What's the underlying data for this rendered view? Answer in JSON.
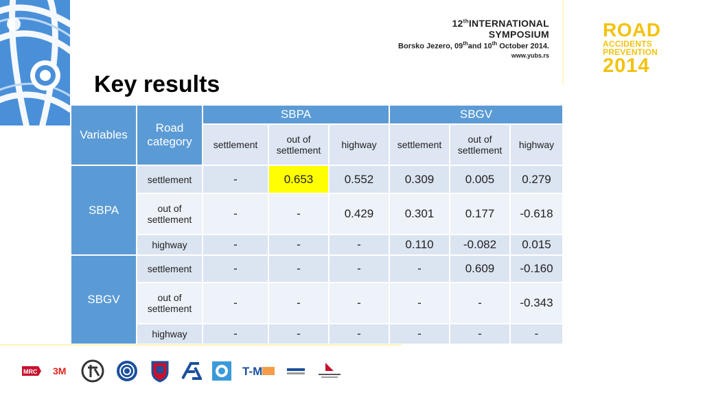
{
  "header": {
    "symposium_line1": "12",
    "symposium_line1_sup": "th",
    "symposium_line1_rest": "INTERNATIONAL",
    "symposium_line2": "SYMPOSIUM",
    "location_a": "Borsko Jezero, 09",
    "location_sup1": "th",
    "location_b": "and 10",
    "location_sup2": "th",
    "location_c": "October 2014.",
    "website": "www.yubs.rs",
    "brand": {
      "line1": "ROAD",
      "line2": "ACCIDENTS",
      "line3": "PREVENTION",
      "line4": "2014"
    }
  },
  "title": "Key results",
  "table": {
    "col_variables": "Variables",
    "col_road_category": "Road category",
    "group1": "SBPA",
    "group2": "SBGV",
    "sub_columns": [
      "settlement",
      "out of settlement",
      "highway",
      "settlement",
      "out of settlement",
      "highway"
    ],
    "row_groups": [
      {
        "name": "SBPA",
        "rows": [
          {
            "category": "settlement",
            "values": [
              "-",
              "0.653",
              "0.552",
              "0.309",
              "0.005",
              "0.279"
            ]
          },
          {
            "category": "out of settlement",
            "values": [
              "-",
              "-",
              "0.429",
              "0.301",
              "0.177",
              "-0.618"
            ]
          },
          {
            "category": "highway",
            "values": [
              "-",
              "-",
              "-",
              "0.110",
              "-0.082",
              "0.015"
            ]
          }
        ]
      },
      {
        "name": "SBGV",
        "rows": [
          {
            "category": "settlement",
            "values": [
              "-",
              "-",
              "-",
              "-",
              "0.609",
              "-0.160"
            ]
          },
          {
            "category": "out of settlement",
            "values": [
              "-",
              "-",
              "-",
              "-",
              "-",
              "-0.343"
            ]
          },
          {
            "category": "highway",
            "values": [
              "-",
              "-",
              "-",
              "-",
              "-",
              "-"
            ]
          }
        ]
      }
    ],
    "highlight_color": "#ffff00"
  },
  "colors": {
    "header_blue": "#5b9bd5",
    "brand_yellow": "#f4c20d"
  },
  "sponsor_logos": [
    "mrc-logo",
    "3m-logo",
    "circle-emblem-logo",
    "blue-rings-logo",
    "shield-crest-logo",
    "fl-logo",
    "stc-logo",
    "tm-logo",
    "ministry-logo",
    "road-safety-agency-logo"
  ],
  "sponsor_texts": {
    "mrc": "MRC",
    "threem": "3M",
    "tm": "T-M"
  }
}
